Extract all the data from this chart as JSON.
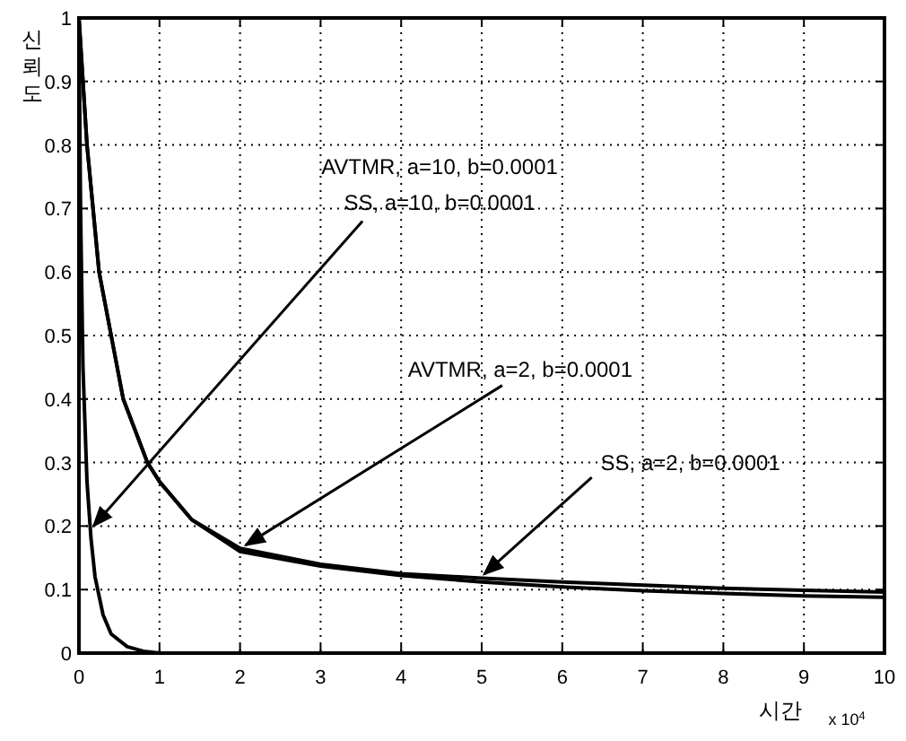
{
  "chart_data": {
    "type": "line",
    "xlabel": "시간",
    "ylabel": "신뢰도",
    "xlim": [
      0,
      10
    ],
    "xticks": [
      0,
      1,
      2,
      3,
      4,
      5,
      6,
      7,
      8,
      9,
      10
    ],
    "ylim": [
      0,
      1
    ],
    "yticks": [
      0,
      0.1,
      0.2,
      0.3,
      0.4,
      0.5,
      0.6,
      0.7,
      0.8,
      0.9,
      1
    ],
    "grid": true,
    "marker": "none",
    "line_style": "solid",
    "series": [
      {
        "color": "#000000",
        "x": [
          0,
          0.02,
          0.05,
          0.1,
          0.15,
          0.2,
          0.3,
          0.4,
          0.6,
          0.8,
          1,
          2,
          5,
          10
        ],
        "values": [
          1,
          0.7,
          0.45,
          0.27,
          0.18,
          0.12,
          0.06,
          0.03,
          0.01,
          0.003,
          0,
          0,
          0,
          0
        ]
      },
      {
        "color": "#000000",
        "x": [
          0,
          0.1,
          0.25,
          0.4,
          0.55,
          0.85,
          1,
          1.4,
          2,
          3,
          4,
          5,
          6,
          7,
          8,
          9,
          10
        ],
        "values": [
          1,
          0.8,
          0.6,
          0.5,
          0.4,
          0.3,
          0.27,
          0.21,
          0.165,
          0.14,
          0.125,
          0.118,
          0.112,
          0.107,
          0.102,
          0.099,
          0.096
        ]
      },
      {
        "color": "#000000",
        "x": [
          0,
          0.1,
          0.25,
          0.4,
          0.55,
          0.85,
          1,
          1.4,
          2,
          3,
          4,
          5,
          6,
          7,
          8,
          9,
          10
        ],
        "values": [
          1,
          0.8,
          0.6,
          0.5,
          0.4,
          0.3,
          0.27,
          0.21,
          0.16,
          0.137,
          0.122,
          0.112,
          0.104,
          0.098,
          0.094,
          0.09,
          0.088
        ]
      }
    ],
    "annotations": [
      "AVTMR, a=10, b=0.0001",
      {
        "text": "SS, a=10, b=0.0001",
        "x": 0.18,
        "y": 0.2
      },
      {
        "text": "AVTMR, a=2, b=0.0001",
        "x": 2.07,
        "y": 0.17
      },
      {
        "text": "SS, a=2, b=0.0001",
        "x": 5.03,
        "y": 0.124
      },
      "x 10$^{4}$"
    ]
  }
}
